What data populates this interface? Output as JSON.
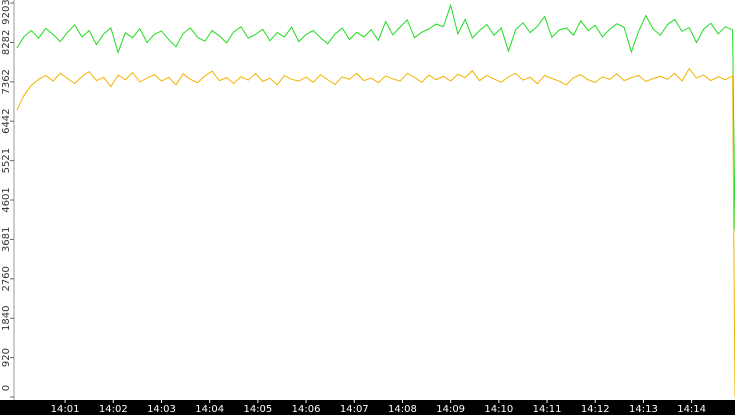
{
  "chart_data": {
    "type": "line",
    "x": [
      840.0,
      840.15,
      840.3,
      840.45,
      840.6,
      840.75,
      840.9,
      841.05,
      841.2,
      841.35,
      841.5,
      841.65,
      841.8,
      841.95,
      842.1,
      842.25,
      842.4,
      842.55,
      842.7,
      842.85,
      843.0,
      843.15,
      843.3,
      843.45,
      843.6,
      843.75,
      843.9,
      844.05,
      844.2,
      844.35,
      844.5,
      844.65,
      844.8,
      844.95,
      845.1,
      845.25,
      845.4,
      845.55,
      845.7,
      845.85,
      846.0,
      846.15,
      846.3,
      846.45,
      846.6,
      846.75,
      846.9,
      847.05,
      847.2,
      847.35,
      847.5,
      847.65,
      847.8,
      847.95,
      848.1,
      848.25,
      848.4,
      848.55,
      848.7,
      848.85,
      849.0,
      849.15,
      849.3,
      849.45,
      849.6,
      849.75,
      849.9,
      850.05,
      850.2,
      850.35,
      850.5,
      850.65,
      850.8,
      850.95,
      851.1,
      851.25,
      851.4,
      851.55,
      851.7,
      851.85,
      852.0,
      852.15,
      852.3,
      852.45,
      852.6,
      852.75,
      852.9,
      853.05,
      853.2,
      853.35,
      853.5,
      853.65,
      853.8,
      853.95,
      854.1,
      854.25,
      854.4,
      854.55,
      854.7,
      854.85,
      854.9
    ],
    "series": [
      {
        "color": "#1edc1e",
        "values": [
          8150,
          8420,
          8560,
          8380,
          8610,
          8470,
          8300,
          8520,
          8690,
          8410,
          8560,
          8230,
          8480,
          8620,
          8050,
          8510,
          8390,
          8600,
          8280,
          8470,
          8550,
          8350,
          8180,
          8490,
          8620,
          8400,
          8310,
          8560,
          8440,
          8270,
          8530,
          8650,
          8380,
          8470,
          8590,
          8320,
          8510,
          8410,
          8640,
          8300,
          8470,
          8560,
          8390,
          8250,
          8480,
          8620,
          8350,
          8520,
          8410,
          8580,
          8330,
          8770,
          8460,
          8640,
          8810,
          8390,
          8520,
          8600,
          8710,
          8650,
          9150,
          8480,
          8820,
          8390,
          8560,
          8700,
          8450,
          8620,
          8080,
          8580,
          8740,
          8510,
          8660,
          8890,
          8400,
          8570,
          8620,
          8450,
          8790,
          8560,
          8680,
          8410,
          8590,
          8720,
          8630,
          8060,
          8540,
          8910,
          8600,
          8450,
          8700,
          8820,
          8540,
          8630,
          8280,
          8590,
          8730,
          8480,
          8650,
          8570,
          3900
        ]
      },
      {
        "color": "#f0b400",
        "values": [
          6700,
          7050,
          7280,
          7420,
          7510,
          7380,
          7560,
          7440,
          7320,
          7490,
          7600,
          7390,
          7470,
          7250,
          7520,
          7410,
          7580,
          7360,
          7450,
          7530,
          7380,
          7470,
          7290,
          7550,
          7420,
          7340,
          7500,
          7610,
          7390,
          7460,
          7320,
          7480,
          7400,
          7560,
          7370,
          7450,
          7290,
          7510,
          7420,
          7380,
          7470,
          7350,
          7530,
          7410,
          7300,
          7480,
          7420,
          7560,
          7390,
          7450,
          7340,
          7500,
          7430,
          7380,
          7560,
          7470,
          7350,
          7520,
          7410,
          7490,
          7380,
          7540,
          7460,
          7620,
          7390,
          7510,
          7430,
          7350,
          7480,
          7560,
          7400,
          7470,
          7320,
          7510,
          7440,
          7380,
          7290,
          7460,
          7530,
          7410,
          7350,
          7480,
          7420,
          7550,
          7390,
          7460,
          7510,
          7370,
          7440,
          7490,
          7420,
          7560,
          7380,
          7670,
          7450,
          7520,
          7390,
          7480,
          7410,
          7500,
          0
        ]
      }
    ],
    "xlim": [
      839.94,
      854.9
    ],
    "xticks": [
      {
        "value": 841,
        "label": "14:01"
      },
      {
        "value": 842,
        "label": "14:02"
      },
      {
        "value": 843,
        "label": "14:03"
      },
      {
        "value": 844,
        "label": "14:04"
      },
      {
        "value": 845,
        "label": "14:05"
      },
      {
        "value": 846,
        "label": "14:06"
      },
      {
        "value": 847,
        "label": "14:07"
      },
      {
        "value": 848,
        "label": "14:08"
      },
      {
        "value": 849,
        "label": "14:09"
      },
      {
        "value": 850,
        "label": "14:10"
      },
      {
        "value": 851,
        "label": "14:11"
      },
      {
        "value": 852,
        "label": "14:12"
      },
      {
        "value": 853,
        "label": "14:13"
      },
      {
        "value": 854,
        "label": "14:14"
      }
    ],
    "ylim": [
      0,
      9203
    ],
    "yticks": [
      0,
      920,
      1840,
      2760,
      3681,
      4601,
      5521,
      6442,
      7362,
      8282,
      9203
    ]
  }
}
